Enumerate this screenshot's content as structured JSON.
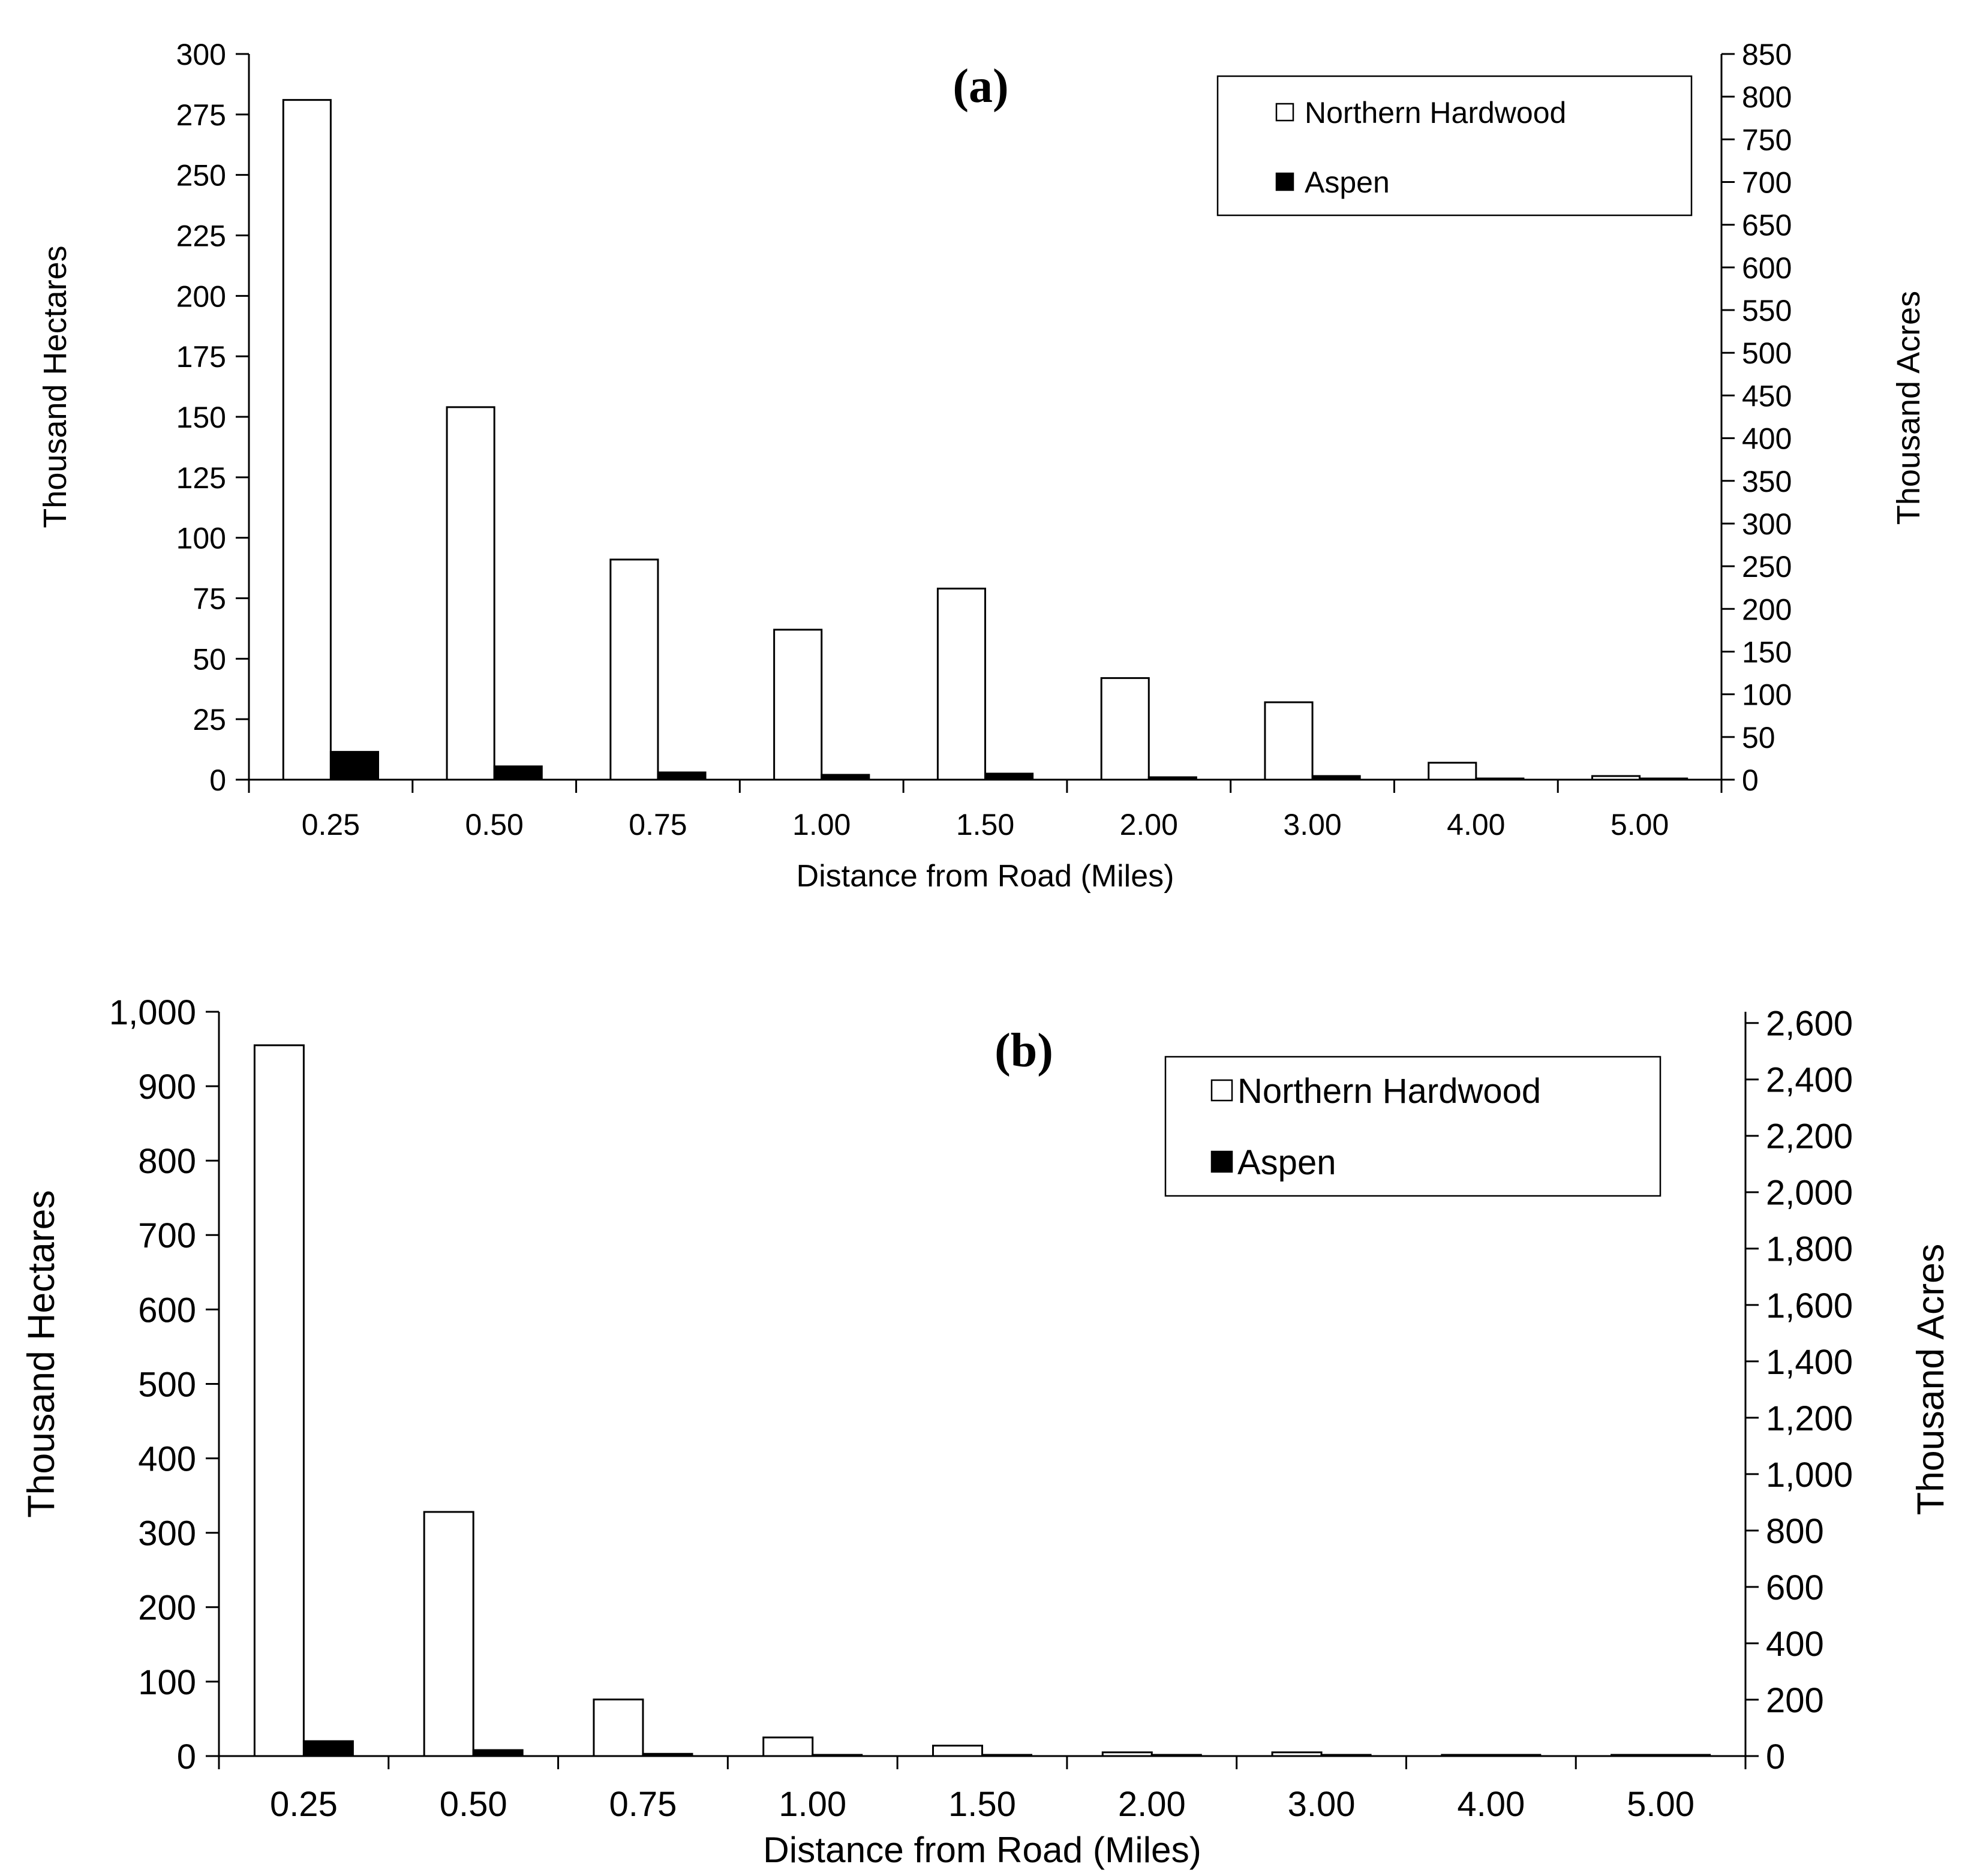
{
  "chart_data": [
    {
      "type": "bar",
      "panel_label": "(a)",
      "categories": [
        "0.25",
        "0.50",
        "0.75",
        "1.00",
        "1.50",
        "2.00",
        "3.00",
        "4.00",
        "5.00"
      ],
      "series": [
        {
          "name": "Northern Hardwood",
          "values": [
            281,
            154,
            91,
            62,
            79,
            42,
            32,
            7,
            1.5
          ],
          "color": "#ffffff",
          "stroke": "#000000"
        },
        {
          "name": "Aspen",
          "values": [
            11.5,
            5.5,
            3,
            2,
            2.5,
            1,
            1.5,
            0.3,
            0.2
          ],
          "color": "#000000",
          "stroke": "#000000"
        }
      ],
      "xlabel": "Distance from Road (Miles)",
      "ylabel": "Thousand Hectares",
      "y2label": "Thousand Acres",
      "ylim": [
        0,
        300
      ],
      "yticks": [
        0,
        25,
        50,
        75,
        100,
        125,
        150,
        175,
        200,
        225,
        250,
        275,
        300
      ],
      "ytick_labels": [
        "0",
        "25",
        "50",
        "75",
        "100",
        "125",
        "150",
        "175",
        "200",
        "225",
        "250",
        "275",
        "300"
      ],
      "y2lim": [
        0,
        850
      ],
      "y2ticks": [
        0,
        50,
        100,
        150,
        200,
        250,
        300,
        350,
        400,
        450,
        500,
        550,
        600,
        650,
        700,
        750,
        800,
        850
      ],
      "y2tick_labels": [
        "0",
        "50",
        "100",
        "150",
        "200",
        "250",
        "300",
        "350",
        "400",
        "450",
        "500",
        "550",
        "600",
        "650",
        "700",
        "750",
        "800",
        "850"
      ],
      "legend": "top-right",
      "grid": false
    },
    {
      "type": "bar",
      "panel_label": "(b)",
      "categories": [
        "0.25",
        "0.50",
        "0.75",
        "1.00",
        "1.50",
        "2.00",
        "3.00",
        "4.00",
        "5.00"
      ],
      "series": [
        {
          "name": "Northern Hardwood",
          "values": [
            955,
            328,
            76,
            25,
            14,
            5,
            5,
            1,
            1
          ],
          "color": "#ffffff",
          "stroke": "#000000"
        },
        {
          "name": "Aspen",
          "values": [
            20,
            8,
            3,
            1,
            1,
            0.5,
            0.5,
            0.2,
            0.1
          ],
          "color": "#000000",
          "stroke": "#000000"
        }
      ],
      "xlabel": "Distance from Road (Miles)",
      "ylabel": "Thousand Hectares",
      "y2label": "Thousand Acres",
      "ylim": [
        0,
        1000
      ],
      "yticks": [
        0,
        100,
        200,
        300,
        400,
        500,
        600,
        700,
        800,
        900,
        1000
      ],
      "ytick_labels": [
        "0",
        "100",
        "200",
        "300",
        "400",
        "500",
        "600",
        "700",
        "800",
        "900",
        "1,000"
      ],
      "y2lim": [
        0,
        2640
      ],
      "y2ticks": [
        0,
        200,
        400,
        600,
        800,
        1000,
        1200,
        1400,
        1600,
        1800,
        2000,
        2200,
        2400,
        2600
      ],
      "y2tick_labels": [
        "0",
        "200",
        "400",
        "600",
        "800",
        "1,000",
        "1,200",
        "1,400",
        "1,600",
        "1,800",
        "2,000",
        "2,200",
        "2,400",
        "2,600"
      ],
      "legend": "top-right",
      "grid": false
    }
  ]
}
